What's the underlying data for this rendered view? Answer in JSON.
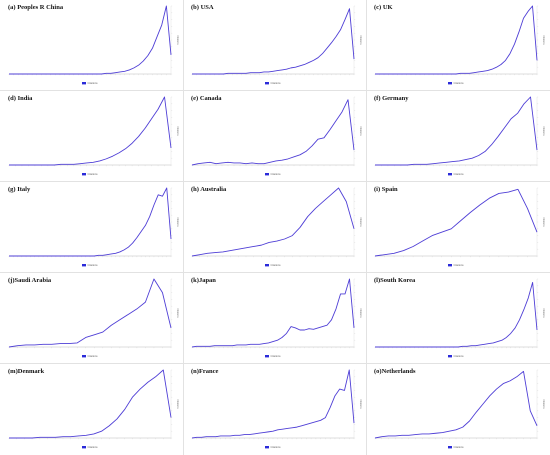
{
  "figure": {
    "line_color": "#4f3fd6",
    "legend_color": "#2b2bd9",
    "ylabel": "Citations"
  },
  "chart_data": [
    {
      "type": "line",
      "title": "(a) Peoples R China",
      "legend": "Citations",
      "ylabel": "Citations",
      "values": [
        0,
        0,
        0,
        0,
        0,
        0,
        0,
        0,
        0,
        0,
        0,
        0,
        0,
        0,
        0,
        0,
        0,
        0,
        0,
        0,
        0,
        1,
        1,
        2,
        3,
        4,
        6,
        9,
        13,
        19,
        27,
        38,
        55,
        72,
        100,
        28
      ],
      "ylim": [
        0,
        100
      ]
    },
    {
      "type": "line",
      "title": "(b) USA",
      "legend": "Citations",
      "ylabel": "Citations",
      "values": [
        0,
        0,
        0,
        0,
        0,
        0,
        0,
        0,
        1,
        1,
        1,
        1,
        1,
        2,
        2,
        2,
        3,
        3,
        4,
        5,
        6,
        7,
        9,
        10,
        12,
        14,
        17,
        20,
        24,
        30,
        38,
        46,
        55,
        65,
        80,
        96,
        22
      ],
      "ylim": [
        0,
        100
      ]
    },
    {
      "type": "line",
      "title": "(c) UK",
      "legend": "Citations",
      "ylabel": "Citations",
      "values": [
        0,
        0,
        0,
        0,
        0,
        0,
        0,
        0,
        0,
        0,
        0,
        0,
        0,
        0,
        0,
        0,
        0,
        0,
        0,
        1,
        1,
        1,
        2,
        3,
        4,
        5,
        7,
        10,
        14,
        20,
        30,
        44,
        62,
        82,
        92,
        100,
        20
      ],
      "ylim": [
        0,
        100
      ]
    },
    {
      "type": "line",
      "title": "(d) India",
      "legend": "Citations",
      "ylabel": "Citations",
      "values": [
        0,
        0,
        0,
        0,
        0,
        0,
        0,
        0,
        1,
        1,
        1,
        2,
        3,
        4,
        6,
        9,
        13,
        18,
        24,
        32,
        42,
        54,
        68,
        82,
        100,
        25
      ],
      "ylim": [
        0,
        100
      ]
    },
    {
      "type": "line",
      "title": "(e) Canada",
      "legend": "Citations",
      "ylabel": "Citations",
      "values": [
        0,
        2,
        3,
        4,
        2,
        3,
        4,
        3,
        3,
        2,
        3,
        2,
        2,
        4,
        6,
        7,
        9,
        12,
        15,
        20,
        28,
        38,
        40,
        52,
        65,
        78,
        96,
        22
      ],
      "ylim": [
        0,
        100
      ]
    },
    {
      "type": "line",
      "title": "(f) Germany",
      "legend": "Citations",
      "ylabel": "Citations",
      "values": [
        0,
        0,
        0,
        0,
        0,
        0,
        1,
        1,
        1,
        2,
        3,
        4,
        5,
        6,
        8,
        10,
        14,
        20,
        30,
        42,
        55,
        68,
        76,
        90,
        100,
        22
      ],
      "ylim": [
        0,
        100
      ]
    },
    {
      "type": "line",
      "title": "(g) Italy",
      "legend": "Citations",
      "ylabel": "Citations",
      "values": [
        0,
        0,
        0,
        0,
        0,
        0,
        0,
        0,
        0,
        0,
        0,
        0,
        0,
        0,
        0,
        0,
        0,
        0,
        0,
        0,
        0,
        1,
        1,
        2,
        3,
        4,
        6,
        9,
        13,
        19,
        27,
        36,
        45,
        58,
        75,
        90,
        88,
        100,
        25
      ],
      "ylim": [
        0,
        100
      ]
    },
    {
      "type": "line",
      "title": "(h) Australia",
      "legend": "Citations",
      "ylabel": "Citations",
      "values": [
        0,
        2,
        4,
        5,
        6,
        8,
        10,
        12,
        14,
        16,
        20,
        22,
        25,
        30,
        42,
        58,
        70,
        80,
        90,
        100,
        80,
        40
      ],
      "ylim": [
        0,
        100
      ]
    },
    {
      "type": "line",
      "title": "(i) Spain",
      "legend": "Citations",
      "ylabel": "Citations",
      "values": [
        0,
        2,
        4,
        8,
        14,
        22,
        30,
        35,
        40,
        52,
        64,
        75,
        85,
        92,
        94,
        98,
        70,
        35
      ],
      "ylim": [
        0,
        100
      ]
    },
    {
      "type": "line",
      "title": "(j)Saudi Arabia",
      "legend": "Citations",
      "ylabel": "Citations",
      "values": [
        0,
        2,
        3,
        3,
        4,
        4,
        5,
        5,
        6,
        14,
        18,
        22,
        32,
        40,
        48,
        56,
        66,
        100,
        80,
        28
      ],
      "ylim": [
        0,
        100
      ]
    },
    {
      "type": "line",
      "title": "(k)Japan",
      "legend": "Citations",
      "ylabel": "Citations",
      "values": [
        0,
        1,
        1,
        1,
        1,
        2,
        2,
        2,
        2,
        2,
        3,
        3,
        3,
        4,
        4,
        4,
        5,
        6,
        8,
        10,
        14,
        20,
        30,
        28,
        25,
        25,
        27,
        26,
        28,
        30,
        32,
        40,
        56,
        78,
        78,
        100,
        28
      ],
      "ylim": [
        0,
        100
      ]
    },
    {
      "type": "line",
      "title": "(l)South Korea",
      "legend": "Citations",
      "ylabel": "Citations",
      "values": [
        0,
        0,
        0,
        0,
        0,
        0,
        0,
        0,
        0,
        0,
        0,
        0,
        0,
        0,
        0,
        0,
        0,
        0,
        0,
        0,
        1,
        1,
        2,
        2,
        3,
        4,
        5,
        6,
        8,
        10,
        14,
        20,
        28,
        40,
        55,
        72,
        95,
        25
      ],
      "ylim": [
        0,
        100
      ]
    },
    {
      "type": "line",
      "title": "(m)Denmark",
      "legend": "Citations",
      "ylabel": "Citations",
      "values": [
        0,
        0,
        0,
        0,
        1,
        1,
        1,
        2,
        2,
        3,
        4,
        6,
        10,
        18,
        28,
        42,
        60,
        72,
        82,
        90,
        100,
        30
      ],
      "ylim": [
        0,
        100
      ]
    },
    {
      "type": "line",
      "title": "(n)France",
      "legend": "Citations",
      "ylabel": "Citations",
      "values": [
        0,
        1,
        1,
        2,
        2,
        2,
        3,
        3,
        3,
        4,
        4,
        5,
        5,
        6,
        7,
        8,
        9,
        10,
        12,
        13,
        14,
        15,
        16,
        18,
        20,
        22,
        24,
        26,
        30,
        45,
        62,
        72,
        70,
        100,
        22
      ],
      "ylim": [
        0,
        100
      ]
    },
    {
      "type": "line",
      "title": "(o)Netherlands",
      "legend": "Citations",
      "ylabel": "Citations",
      "values": [
        0,
        2,
        3,
        3,
        4,
        4,
        5,
        6,
        6,
        7,
        8,
        10,
        12,
        16,
        25,
        38,
        50,
        62,
        72,
        80,
        84,
        90,
        98,
        40,
        18
      ],
      "ylim": [
        0,
        100
      ]
    }
  ]
}
